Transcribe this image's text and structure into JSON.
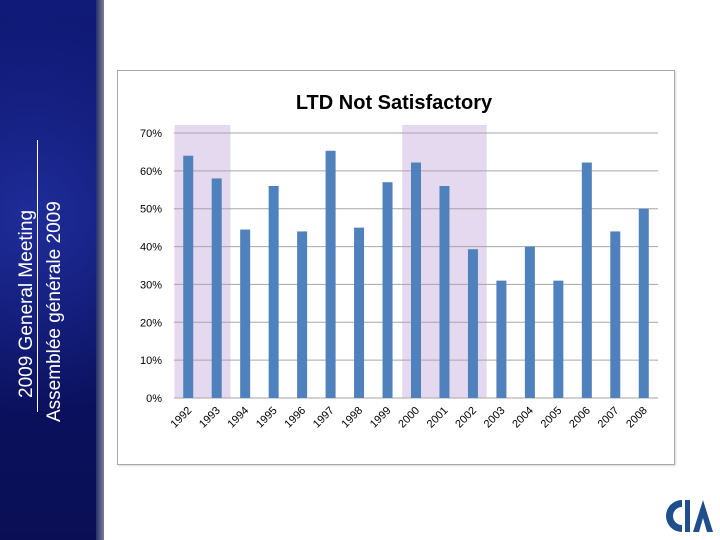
{
  "sidebar": {
    "line_en": "2009 General Meeting",
    "line_fr": "Assemblée générale 2009",
    "colors": {
      "background": "#0b1266",
      "text": "#ffffff"
    }
  },
  "chart_data": {
    "type": "bar",
    "title": "LTD Not Satisfactory",
    "categories": [
      "1992",
      "1993",
      "1994",
      "1995",
      "1996",
      "1997",
      "1998",
      "1999",
      "2000",
      "2001",
      "2002",
      "2003",
      "2004",
      "2005",
      "2006",
      "2007",
      "2008"
    ],
    "values": [
      64,
      58,
      44.5,
      56,
      44,
      65.3,
      45,
      57,
      62.2,
      56,
      39.3,
      31,
      40,
      31,
      62.2,
      44,
      50
    ],
    "ylim": [
      0,
      70
    ],
    "ytick_labels": [
      "0%",
      "10%",
      "20%",
      "30%",
      "40%",
      "50%",
      "60%",
      "70%"
    ],
    "highlighted_ranges": [
      [
        "1992",
        "1993"
      ],
      [
        "2000",
        "2002"
      ]
    ],
    "xlabel": "",
    "ylabel": "",
    "grid": true,
    "colors": {
      "bar": "#4f81bd",
      "highlight": "#e4d9ef",
      "grid": "#a6a6a6"
    }
  },
  "logo": {
    "icon": "cia-logo-icon",
    "colors": {
      "primary": "#1f4e8c"
    }
  }
}
